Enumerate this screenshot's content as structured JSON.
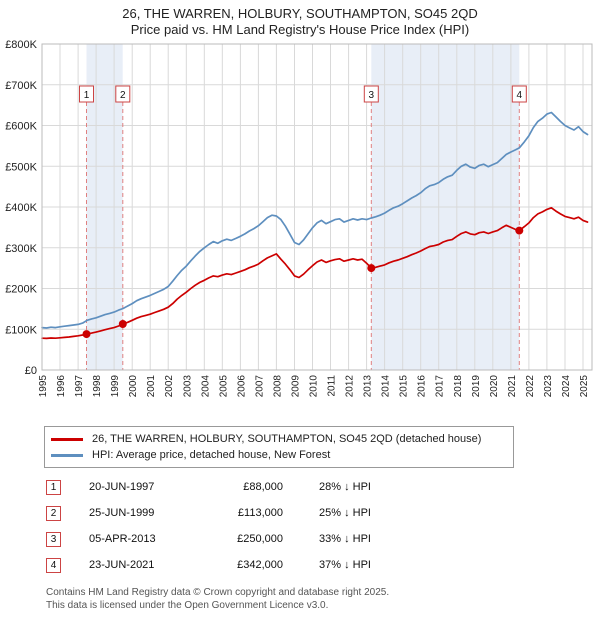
{
  "chart_data": {
    "type": "line",
    "title": "26, THE WARREN, HOLBURY, SOUTHAMPTON, SO45 2QD",
    "subtitle": "Price paid vs. HM Land Registry's House Price Index (HPI)",
    "xlabel": "",
    "ylabel": "",
    "xlim": [
      1995,
      2025.5
    ],
    "ylim": [
      0,
      800000
    ],
    "grid": true,
    "legend_position": "bottom",
    "colors": {
      "band": "#e8eef7",
      "grid": "#d9d9d9",
      "plot_border": "#bbbbbb",
      "sale_dash": "#e08080",
      "sale_box_border": "#cc4444",
      "marker": "#cc0000"
    },
    "yticks": [
      {
        "v": 0,
        "label": "£0"
      },
      {
        "v": 100000,
        "label": "£100K"
      },
      {
        "v": 200000,
        "label": "£200K"
      },
      {
        "v": 300000,
        "label": "£300K"
      },
      {
        "v": 400000,
        "label": "£400K"
      },
      {
        "v": 500000,
        "label": "£500K"
      },
      {
        "v": 600000,
        "label": "£600K"
      },
      {
        "v": 700000,
        "label": "£700K"
      },
      {
        "v": 800000,
        "label": "£800K"
      }
    ],
    "xticks": [
      1995,
      1996,
      1997,
      1998,
      1999,
      2000,
      2001,
      2002,
      2003,
      2004,
      2005,
      2006,
      2007,
      2008,
      2009,
      2010,
      2011,
      2012,
      2013,
      2014,
      2015,
      2016,
      2017,
      2018,
      2019,
      2020,
      2021,
      2022,
      2023,
      2024,
      2025
    ],
    "bands": [
      {
        "from": 1997.47,
        "to": 1999.48
      },
      {
        "from": 2013.26,
        "to": 2021.47
      }
    ],
    "series": [
      {
        "id": "price-paid-line",
        "name": "26, THE WARREN, HOLBURY, SOUTHAMPTON, SO45 2QD (detached house)",
        "color": "#cc0000",
        "points": [
          [
            1995.0,
            78000
          ],
          [
            1995.25,
            77500
          ],
          [
            1995.5,
            78500
          ],
          [
            1995.75,
            78000
          ],
          [
            1996.0,
            79000
          ],
          [
            1996.25,
            80000
          ],
          [
            1996.5,
            81000
          ],
          [
            1996.75,
            82500
          ],
          [
            1997.0,
            84000
          ],
          [
            1997.25,
            86000
          ],
          [
            1997.47,
            88000
          ],
          [
            1997.75,
            90500
          ],
          [
            1998.0,
            93000
          ],
          [
            1998.25,
            96000
          ],
          [
            1998.5,
            99000
          ],
          [
            1998.75,
            101500
          ],
          [
            1999.0,
            104000
          ],
          [
            1999.25,
            108000
          ],
          [
            1999.48,
            113000
          ],
          [
            1999.75,
            117000
          ],
          [
            2000.0,
            122000
          ],
          [
            2000.25,
            127000
          ],
          [
            2000.5,
            131000
          ],
          [
            2000.75,
            134000
          ],
          [
            2001.0,
            137000
          ],
          [
            2001.25,
            141000
          ],
          [
            2001.5,
            145000
          ],
          [
            2001.75,
            149000
          ],
          [
            2002.0,
            154000
          ],
          [
            2002.25,
            163000
          ],
          [
            2002.5,
            174000
          ],
          [
            2002.75,
            183000
          ],
          [
            2003.0,
            191000
          ],
          [
            2003.25,
            200000
          ],
          [
            2003.5,
            208000
          ],
          [
            2003.75,
            215000
          ],
          [
            2004.0,
            220000
          ],
          [
            2004.25,
            226000
          ],
          [
            2004.5,
            231000
          ],
          [
            2004.75,
            229000
          ],
          [
            2005.0,
            233000
          ],
          [
            2005.25,
            236000
          ],
          [
            2005.5,
            234000
          ],
          [
            2005.75,
            238000
          ],
          [
            2006.0,
            242000
          ],
          [
            2006.25,
            246000
          ],
          [
            2006.5,
            251000
          ],
          [
            2006.75,
            255000
          ],
          [
            2007.0,
            260000
          ],
          [
            2007.25,
            268000
          ],
          [
            2007.5,
            275000
          ],
          [
            2007.75,
            280000
          ],
          [
            2008.0,
            285000
          ],
          [
            2008.25,
            272000
          ],
          [
            2008.5,
            260000
          ],
          [
            2008.75,
            246000
          ],
          [
            2009.0,
            231000
          ],
          [
            2009.25,
            227000
          ],
          [
            2009.5,
            235000
          ],
          [
            2009.75,
            246000
          ],
          [
            2010.0,
            256000
          ],
          [
            2010.25,
            265000
          ],
          [
            2010.5,
            270000
          ],
          [
            2010.75,
            264000
          ],
          [
            2011.0,
            268000
          ],
          [
            2011.25,
            271000
          ],
          [
            2011.5,
            273000
          ],
          [
            2011.75,
            267000
          ],
          [
            2012.0,
            270000
          ],
          [
            2012.25,
            273000
          ],
          [
            2012.5,
            270000
          ],
          [
            2012.75,
            272000
          ],
          [
            2013.0,
            262000
          ],
          [
            2013.26,
            250000
          ],
          [
            2013.5,
            252000
          ],
          [
            2013.75,
            255000
          ],
          [
            2014.0,
            258000
          ],
          [
            2014.25,
            263000
          ],
          [
            2014.5,
            267000
          ],
          [
            2014.75,
            270000
          ],
          [
            2015.0,
            274000
          ],
          [
            2015.25,
            278000
          ],
          [
            2015.5,
            283000
          ],
          [
            2015.75,
            287000
          ],
          [
            2016.0,
            292000
          ],
          [
            2016.25,
            298000
          ],
          [
            2016.5,
            303000
          ],
          [
            2016.75,
            305000
          ],
          [
            2017.0,
            308000
          ],
          [
            2017.25,
            314000
          ],
          [
            2017.5,
            318000
          ],
          [
            2017.75,
            320000
          ],
          [
            2018.0,
            328000
          ],
          [
            2018.25,
            335000
          ],
          [
            2018.5,
            339000
          ],
          [
            2018.75,
            334000
          ],
          [
            2019.0,
            332000
          ],
          [
            2019.25,
            337000
          ],
          [
            2019.5,
            339000
          ],
          [
            2019.75,
            335000
          ],
          [
            2020.0,
            339000
          ],
          [
            2020.25,
            342000
          ],
          [
            2020.5,
            349000
          ],
          [
            2020.75,
            355000
          ],
          [
            2021.0,
            350000
          ],
          [
            2021.25,
            345000
          ],
          [
            2021.47,
            342000
          ],
          [
            2021.75,
            352000
          ],
          [
            2022.0,
            361000
          ],
          [
            2022.25,
            374000
          ],
          [
            2022.5,
            383000
          ],
          [
            2022.75,
            388000
          ],
          [
            2023.0,
            394000
          ],
          [
            2023.25,
            398000
          ],
          [
            2023.5,
            390000
          ],
          [
            2023.75,
            383000
          ],
          [
            2024.0,
            377000
          ],
          [
            2024.25,
            374000
          ],
          [
            2024.5,
            371000
          ],
          [
            2024.75,
            375000
          ],
          [
            2025.0,
            367000
          ],
          [
            2025.25,
            363000
          ]
        ]
      },
      {
        "id": "hpi-line",
        "name": "HPI: Average price, detached house, New Forest",
        "color": "#5e8fbf",
        "points": [
          [
            1995.0,
            104000
          ],
          [
            1995.25,
            103000
          ],
          [
            1995.5,
            105000
          ],
          [
            1995.75,
            104000
          ],
          [
            1996.0,
            106000
          ],
          [
            1996.25,
            107500
          ],
          [
            1996.5,
            109000
          ],
          [
            1996.75,
            110500
          ],
          [
            1997.0,
            112000
          ],
          [
            1997.25,
            115000
          ],
          [
            1997.5,
            122000
          ],
          [
            1997.75,
            125500
          ],
          [
            1998.0,
            128000
          ],
          [
            1998.25,
            132000
          ],
          [
            1998.5,
            136000
          ],
          [
            1998.75,
            139000
          ],
          [
            1999.0,
            142000
          ],
          [
            1999.25,
            147000
          ],
          [
            1999.5,
            151000
          ],
          [
            1999.75,
            157000
          ],
          [
            2000.0,
            163000
          ],
          [
            2000.25,
            170000
          ],
          [
            2000.5,
            175000
          ],
          [
            2000.75,
            179000
          ],
          [
            2001.0,
            183000
          ],
          [
            2001.25,
            188000
          ],
          [
            2001.5,
            193000
          ],
          [
            2001.75,
            198000
          ],
          [
            2002.0,
            205000
          ],
          [
            2002.25,
            218000
          ],
          [
            2002.5,
            232000
          ],
          [
            2002.75,
            245000
          ],
          [
            2003.0,
            255000
          ],
          [
            2003.25,
            268000
          ],
          [
            2003.5,
            280000
          ],
          [
            2003.75,
            291000
          ],
          [
            2004.0,
            300000
          ],
          [
            2004.25,
            308000
          ],
          [
            2004.5,
            315000
          ],
          [
            2004.75,
            311000
          ],
          [
            2005.0,
            317000
          ],
          [
            2005.25,
            321000
          ],
          [
            2005.5,
            318000
          ],
          [
            2005.75,
            323000
          ],
          [
            2006.0,
            328000
          ],
          [
            2006.25,
            334000
          ],
          [
            2006.5,
            341000
          ],
          [
            2006.75,
            347000
          ],
          [
            2007.0,
            354000
          ],
          [
            2007.25,
            364000
          ],
          [
            2007.5,
            374000
          ],
          [
            2007.75,
            380000
          ],
          [
            2008.0,
            378000
          ],
          [
            2008.25,
            369000
          ],
          [
            2008.5,
            353000
          ],
          [
            2008.75,
            333000
          ],
          [
            2009.0,
            313000
          ],
          [
            2009.25,
            308000
          ],
          [
            2009.5,
            319000
          ],
          [
            2009.75,
            334000
          ],
          [
            2010.0,
            349000
          ],
          [
            2010.25,
            361000
          ],
          [
            2010.5,
            367000
          ],
          [
            2010.75,
            359000
          ],
          [
            2011.0,
            364000
          ],
          [
            2011.25,
            369000
          ],
          [
            2011.5,
            371000
          ],
          [
            2011.75,
            363000
          ],
          [
            2012.0,
            367000
          ],
          [
            2012.25,
            371000
          ],
          [
            2012.5,
            368000
          ],
          [
            2012.75,
            371000
          ],
          [
            2013.0,
            369000
          ],
          [
            2013.26,
            373000
          ],
          [
            2013.5,
            376000
          ],
          [
            2013.75,
            380000
          ],
          [
            2014.0,
            385000
          ],
          [
            2014.25,
            392000
          ],
          [
            2014.5,
            398000
          ],
          [
            2014.75,
            402000
          ],
          [
            2015.0,
            408000
          ],
          [
            2015.25,
            415000
          ],
          [
            2015.5,
            422000
          ],
          [
            2015.75,
            428000
          ],
          [
            2016.0,
            435000
          ],
          [
            2016.25,
            445000
          ],
          [
            2016.5,
            452000
          ],
          [
            2016.75,
            455000
          ],
          [
            2017.0,
            460000
          ],
          [
            2017.25,
            468000
          ],
          [
            2017.5,
            474000
          ],
          [
            2017.75,
            478000
          ],
          [
            2018.0,
            490000
          ],
          [
            2018.25,
            500000
          ],
          [
            2018.5,
            505000
          ],
          [
            2018.75,
            498000
          ],
          [
            2019.0,
            495000
          ],
          [
            2019.25,
            502000
          ],
          [
            2019.5,
            505000
          ],
          [
            2019.75,
            499000
          ],
          [
            2020.0,
            504000
          ],
          [
            2020.25,
            509000
          ],
          [
            2020.5,
            519000
          ],
          [
            2020.75,
            529000
          ],
          [
            2021.0,
            535000
          ],
          [
            2021.25,
            540000
          ],
          [
            2021.47,
            545000
          ],
          [
            2021.75,
            560000
          ],
          [
            2022.0,
            575000
          ],
          [
            2022.25,
            595000
          ],
          [
            2022.5,
            610000
          ],
          [
            2022.75,
            618000
          ],
          [
            2023.0,
            628000
          ],
          [
            2023.25,
            632000
          ],
          [
            2023.5,
            621000
          ],
          [
            2023.75,
            610000
          ],
          [
            2024.0,
            600000
          ],
          [
            2024.25,
            594000
          ],
          [
            2024.5,
            589000
          ],
          [
            2024.75,
            597000
          ],
          [
            2025.0,
            585000
          ],
          [
            2025.25,
            578000
          ]
        ]
      }
    ],
    "sales": [
      {
        "n": "1",
        "x": 1997.47,
        "y": 88000
      },
      {
        "n": "2",
        "x": 1999.48,
        "y": 113000
      },
      {
        "n": "3",
        "x": 2013.26,
        "y": 250000
      },
      {
        "n": "4",
        "x": 2021.47,
        "y": 342000
      }
    ]
  },
  "transactions": [
    {
      "num": "1",
      "date": "20-JUN-1997",
      "price": "£88,000",
      "vs_hpi": "28% ↓ HPI"
    },
    {
      "num": "2",
      "date": "25-JUN-1999",
      "price": "£113,000",
      "vs_hpi": "25% ↓ HPI"
    },
    {
      "num": "3",
      "date": "05-APR-2013",
      "price": "£250,000",
      "vs_hpi": "33% ↓ HPI"
    },
    {
      "num": "4",
      "date": "23-JUN-2021",
      "price": "£342,000",
      "vs_hpi": "37% ↓ HPI"
    }
  ],
  "footer": {
    "line1": "Contains HM Land Registry data © Crown copyright and database right 2025.",
    "line2": "This data is licensed under the Open Government Licence v3.0."
  }
}
